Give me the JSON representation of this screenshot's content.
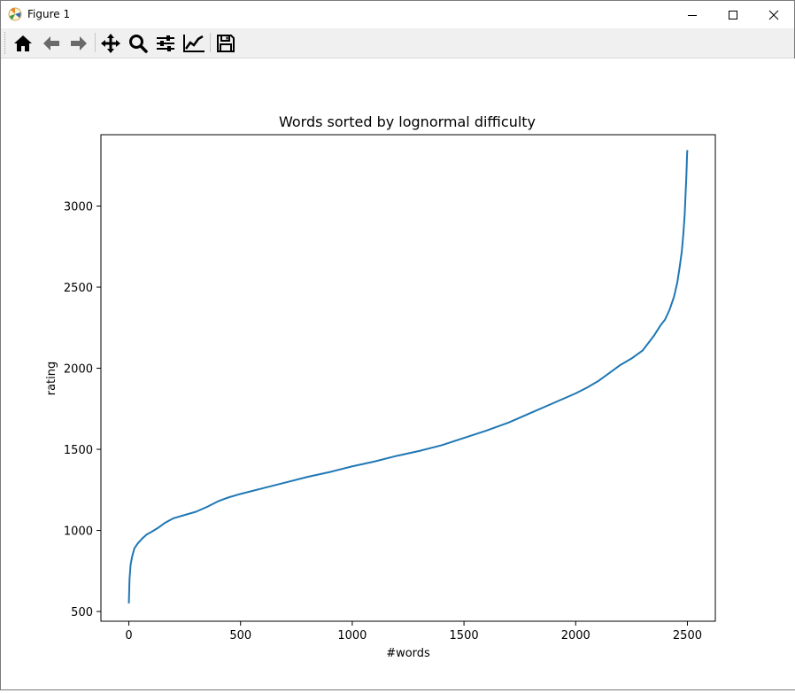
{
  "window": {
    "title": "Figure 1"
  },
  "toolbar": {
    "tools": [
      {
        "name": "home-icon"
      },
      {
        "name": "back-icon"
      },
      {
        "name": "forward-icon"
      },
      {
        "name": "pan-icon"
      },
      {
        "name": "zoom-icon"
      },
      {
        "name": "subplots-icon"
      },
      {
        "name": "edit-axis-icon"
      },
      {
        "name": "save-icon"
      }
    ]
  },
  "chart_data": {
    "type": "line",
    "title": "Words sorted by lognormal difficulty",
    "xlabel": "#words",
    "ylabel": "rating",
    "xlim": [
      -125,
      2625
    ],
    "ylim": [
      440,
      3440
    ],
    "xticks": [
      0,
      500,
      1000,
      1500,
      2000,
      2500
    ],
    "yticks": [
      500,
      1000,
      1500,
      2000,
      2500,
      3000
    ],
    "grid": false,
    "line_color": "#1f77b4",
    "series": [
      {
        "x": [
          0,
          3,
          8,
          15,
          25,
          40,
          60,
          80,
          100,
          130,
          160,
          200,
          250,
          300,
          350,
          400,
          450,
          500,
          600,
          700,
          800,
          900,
          1000,
          1100,
          1200,
          1300,
          1400,
          1500,
          1600,
          1700,
          1800,
          1900,
          2000,
          2050,
          2100,
          2150,
          2200,
          2250,
          2300,
          2350,
          2380,
          2400,
          2420,
          2440,
          2455,
          2465,
          2475,
          2482,
          2488,
          2492,
          2495,
          2497,
          2498,
          2499,
          2500
        ],
        "values": [
          550,
          700,
          790,
          840,
          890,
          920,
          950,
          975,
          990,
          1015,
          1045,
          1075,
          1095,
          1115,
          1145,
          1180,
          1205,
          1225,
          1260,
          1295,
          1330,
          1360,
          1395,
          1425,
          1460,
          1490,
          1525,
          1570,
          1615,
          1665,
          1725,
          1785,
          1845,
          1880,
          1920,
          1970,
          2020,
          2060,
          2110,
          2200,
          2265,
          2300,
          2360,
          2440,
          2530,
          2620,
          2720,
          2830,
          2950,
          3080,
          3170,
          3250,
          3300,
          3330,
          3345
        ]
      }
    ]
  }
}
